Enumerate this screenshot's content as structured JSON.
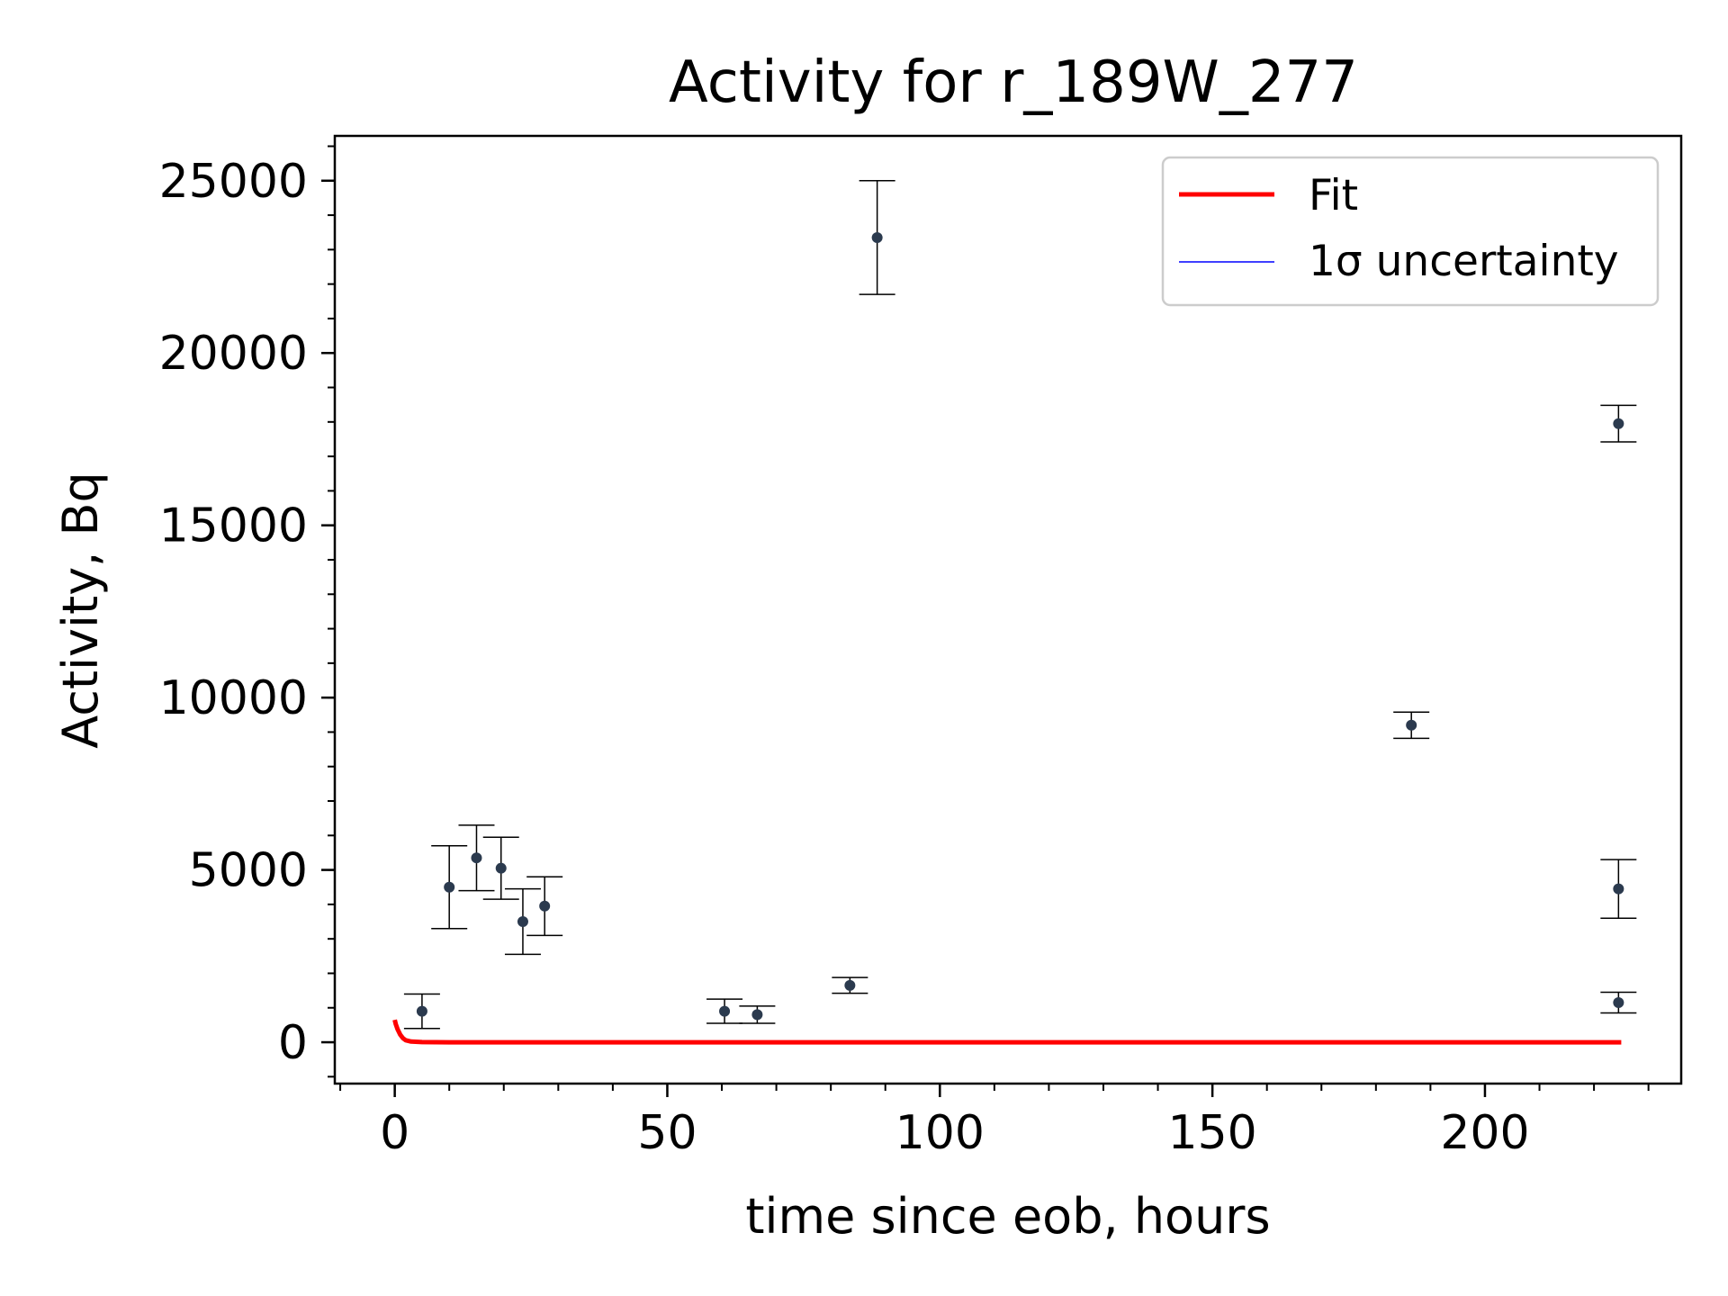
{
  "chart_data": {
    "type": "scatter",
    "title": "Activity for r_189W_277",
    "xlabel": "time since eob, hours",
    "ylabel": "Activity, Bq",
    "xlim": [
      -11,
      236
    ],
    "ylim": [
      -1200,
      26300
    ],
    "x_ticks": [
      0,
      50,
      100,
      150,
      200
    ],
    "y_ticks": [
      0,
      5000,
      10000,
      15000,
      20000,
      25000
    ],
    "x_tick_labels": [
      "0",
      "50",
      "100",
      "150",
      "200"
    ],
    "y_tick_labels": [
      "0",
      "5000",
      "10000",
      "15000",
      "20000",
      "25000"
    ],
    "x_minor_step": 10,
    "y_minor_step": 1000,
    "grid": false,
    "legend": {
      "position": "top-right",
      "entries": [
        {
          "label": "Fit",
          "color": "#ff0000"
        },
        {
          "label": "1σ uncertainty",
          "color": "#0000ff"
        }
      ]
    },
    "measurements": {
      "color": "#2b3a4e",
      "points": [
        {
          "x": 5,
          "y": 900,
          "err": 500
        },
        {
          "x": 10,
          "y": 4500,
          "err": 1200
        },
        {
          "x": 15,
          "y": 5350,
          "err": 950
        },
        {
          "x": 19.5,
          "y": 5050,
          "err": 900
        },
        {
          "x": 23.5,
          "y": 3500,
          "err": 950
        },
        {
          "x": 27.5,
          "y": 3950,
          "err": 850
        },
        {
          "x": 60.5,
          "y": 900,
          "err": 350
        },
        {
          "x": 66.5,
          "y": 800,
          "err": 250
        },
        {
          "x": 83.5,
          "y": 1650,
          "err": 230
        },
        {
          "x": 88.5,
          "y": 23350,
          "err": 1650
        },
        {
          "x": 186.5,
          "y": 9200,
          "err": 380
        },
        {
          "x": 224.5,
          "y": 17950,
          "err": 530
        },
        {
          "x": 224.5,
          "y": 4450,
          "err": 850
        },
        {
          "x": 224.5,
          "y": 1150,
          "err": 300
        }
      ]
    },
    "series": [
      {
        "name": "Fit",
        "color": "#ff0000",
        "x": [
          0,
          0.2,
          0.5,
          1,
          1.5,
          2,
          3,
          5,
          10,
          50,
          100,
          150,
          200,
          225
        ],
        "y": [
          650,
          520,
          380,
          220,
          120,
          60,
          20,
          5,
          0,
          0,
          0,
          0,
          0,
          0
        ]
      }
    ]
  }
}
